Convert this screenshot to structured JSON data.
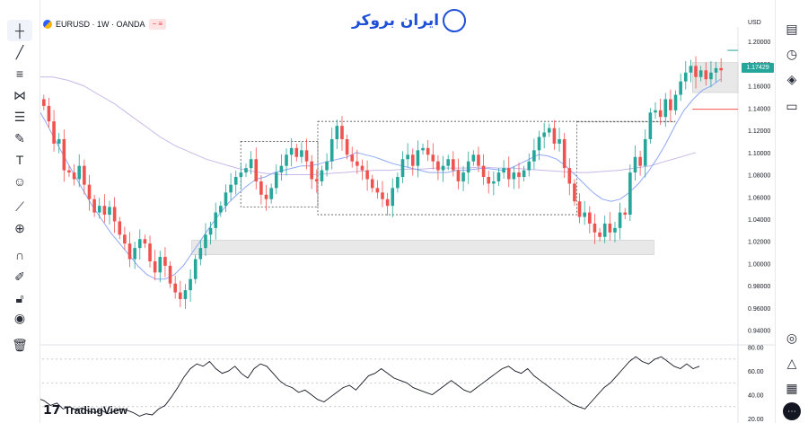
{
  "header": {
    "symbol": "EURUSD · 1W · OANDA",
    "badge": "− ≡",
    "brand": "ایران بروکر"
  },
  "currency": "USD",
  "last_price": "1.17429",
  "footer_logo": "TradingView",
  "colors": {
    "up": "#26a69a",
    "down": "#ef5350",
    "ma_fast": "#8fa8f5",
    "ma_slow": "#c8b7e8",
    "rsi": "#131722",
    "zone_fill": "#e0e0e0",
    "dashed_box": "#555555",
    "price_tag": "#26a69a"
  },
  "icons": {
    "left": [
      "crosshair-icon",
      "trendline-icon",
      "horizontal-lines-icon",
      "pattern-icon",
      "fib-icon",
      "brush-icon",
      "text-icon",
      "emoji-icon",
      "ruler-icon",
      "zoom-in-icon",
      "magnet-icon",
      "lock-draw-icon",
      "lock-icon",
      "eye-icon",
      "trash-icon"
    ],
    "right": [
      "watchlist-icon",
      "alarm-icon",
      "layers-icon",
      "chat-icon",
      "hotlist-icon",
      "pulse-icon",
      "calendar-icon",
      "more-icon"
    ]
  },
  "chart_data": [
    {
      "type": "candlestick",
      "title": "EURUSD · 1W · OANDA",
      "ylim": [
        0.93,
        1.205
      ],
      "y_ticks": [
        "1.20000",
        "1.18000",
        "1.16000",
        "1.14000",
        "1.12000",
        "1.10000",
        "1.08000",
        "1.06000",
        "1.04000",
        "1.02000",
        "1.00000",
        "0.98000",
        "0.96000",
        "0.94000"
      ],
      "closes": [
        1.142,
        1.128,
        1.108,
        1.112,
        1.084,
        1.082,
        1.076,
        1.088,
        1.071,
        1.058,
        1.046,
        1.052,
        1.044,
        1.051,
        1.038,
        1.026,
        1.018,
        1.004,
        1.014,
        1.022,
        1.018,
        1.002,
        0.992,
        1.006,
        0.998,
        0.982,
        0.974,
        0.968,
        0.976,
        0.986,
        1.004,
        1.014,
        1.026,
        1.032,
        1.046,
        1.052,
        1.064,
        1.071,
        1.078,
        1.082,
        1.086,
        1.094,
        1.074,
        1.062,
        1.058,
        1.068,
        1.082,
        1.088,
        1.098,
        1.104,
        1.096,
        1.102,
        1.092,
        1.076,
        1.074,
        1.084,
        1.092,
        1.112,
        1.124,
        1.112,
        1.098,
        1.092,
        1.088,
        1.084,
        1.076,
        1.068,
        1.064,
        1.058,
        1.052,
        1.068,
        1.078,
        1.094,
        1.098,
        1.088,
        1.102,
        1.104,
        1.098,
        1.092,
        1.084,
        1.088,
        1.094,
        1.084,
        1.074,
        1.082,
        1.092,
        1.098,
        1.088,
        1.078,
        1.072,
        1.074,
        1.082,
        1.086,
        1.076,
        1.082,
        1.078,
        1.084,
        1.092,
        1.102,
        1.114,
        1.118,
        1.122,
        1.108,
        1.112,
        1.086,
        1.072,
        1.056,
        1.042,
        1.046,
        1.036,
        1.028,
        1.024,
        1.036,
        1.028,
        1.032,
        1.046,
        1.044,
        1.082,
        1.096,
        1.088,
        1.112,
        1.136,
        1.138,
        1.132,
        1.148,
        1.138,
        1.152,
        1.164,
        1.172,
        1.178,
        1.168,
        1.174,
        1.166,
        1.172,
        1.176,
        1.174
      ],
      "sma_fast": [
        1.14,
        1.126,
        1.11,
        1.095,
        1.08,
        1.066,
        1.052,
        1.04,
        1.028,
        1.018,
        1.008,
        0.998,
        0.99,
        0.986,
        0.986,
        0.99,
        0.998,
        1.01,
        1.022,
        1.034,
        1.045,
        1.055,
        1.063,
        1.07,
        1.076,
        1.078,
        1.082,
        1.084,
        1.086,
        1.088,
        1.088,
        1.09,
        1.092,
        1.094,
        1.096,
        1.1,
        1.098,
        1.096,
        1.093,
        1.09,
        1.088,
        1.086,
        1.084,
        1.082,
        1.082,
        1.082,
        1.084,
        1.084,
        1.085,
        1.086,
        1.085,
        1.084,
        1.086,
        1.09,
        1.094,
        1.098,
        1.097,
        1.094,
        1.088,
        1.08,
        1.072,
        1.064,
        1.058,
        1.056,
        1.058,
        1.064,
        1.072,
        1.082,
        1.094,
        1.108,
        1.124,
        1.138,
        1.148,
        1.156,
        1.16,
        1.166
      ],
      "sma_slow": [
        1.168,
        1.168,
        1.165,
        1.16,
        1.152,
        1.144,
        1.134,
        1.124,
        1.114,
        1.106,
        1.1,
        1.094,
        1.09,
        1.086,
        1.083,
        1.081,
        1.08,
        1.08,
        1.08,
        1.081,
        1.082,
        1.083,
        1.084,
        1.084,
        1.085,
        1.085,
        1.086,
        1.086,
        1.086,
        1.087,
        1.086,
        1.086,
        1.085,
        1.084,
        1.083,
        1.082,
        1.082,
        1.083,
        1.084,
        1.086,
        1.088,
        1.092,
        1.096,
        1.1
      ],
      "annotations": [
        {
          "kind": "zone",
          "x0": 0.22,
          "x1": 0.88,
          "y0": 1.021,
          "y1": 1.008
        },
        {
          "kind": "box",
          "x0": 0.29,
          "x1": 0.4,
          "y0": 1.11,
          "y1": 1.051
        },
        {
          "kind": "box",
          "x0": 0.4,
          "x1": 0.77,
          "y0": 1.128,
          "y1": 1.044
        },
        {
          "kind": "box",
          "x0": 0.77,
          "x1": 0.91,
          "y0": 1.128,
          "y1": 1.128
        },
        {
          "kind": "zone",
          "x0": 0.935,
          "x1": 1.0,
          "y0": 1.181,
          "y1": 1.154
        },
        {
          "kind": "line",
          "x0": 0.935,
          "x1": 1.0,
          "y0": 1.139,
          "y1": 1.139,
          "color": "#ef5350"
        },
        {
          "kind": "line",
          "x0": 0.985,
          "x1": 1.0,
          "y0": 1.192,
          "y1": 1.192,
          "color": "#26a69a"
        }
      ]
    },
    {
      "type": "line",
      "title": "RSI",
      "ylim": [
        20,
        82
      ],
      "y_ticks": [
        "80.00",
        "60.00",
        "40.00",
        "20.00"
      ],
      "levels": [
        70,
        50,
        30
      ],
      "values": [
        37,
        35,
        31,
        33,
        28,
        30,
        27,
        29,
        26,
        25,
        27,
        24,
        26,
        28,
        27,
        25,
        22,
        24,
        23,
        28,
        31,
        38,
        46,
        55,
        62,
        66,
        64,
        68,
        62,
        58,
        60,
        64,
        58,
        54,
        62,
        66,
        64,
        58,
        52,
        48,
        46,
        42,
        44,
        40,
        36,
        34,
        38,
        42,
        46,
        48,
        44,
        50,
        56,
        58,
        62,
        58,
        54,
        52,
        50,
        46,
        44,
        42,
        40,
        44,
        48,
        52,
        48,
        44,
        42,
        46,
        50,
        54,
        58,
        62,
        64,
        60,
        58,
        62,
        56,
        52,
        48,
        44,
        40,
        36,
        32,
        30,
        28,
        34,
        40,
        46,
        50,
        56,
        62,
        68,
        72,
        68,
        66,
        70,
        72,
        68,
        64,
        62,
        66,
        62,
        64
      ]
    }
  ]
}
